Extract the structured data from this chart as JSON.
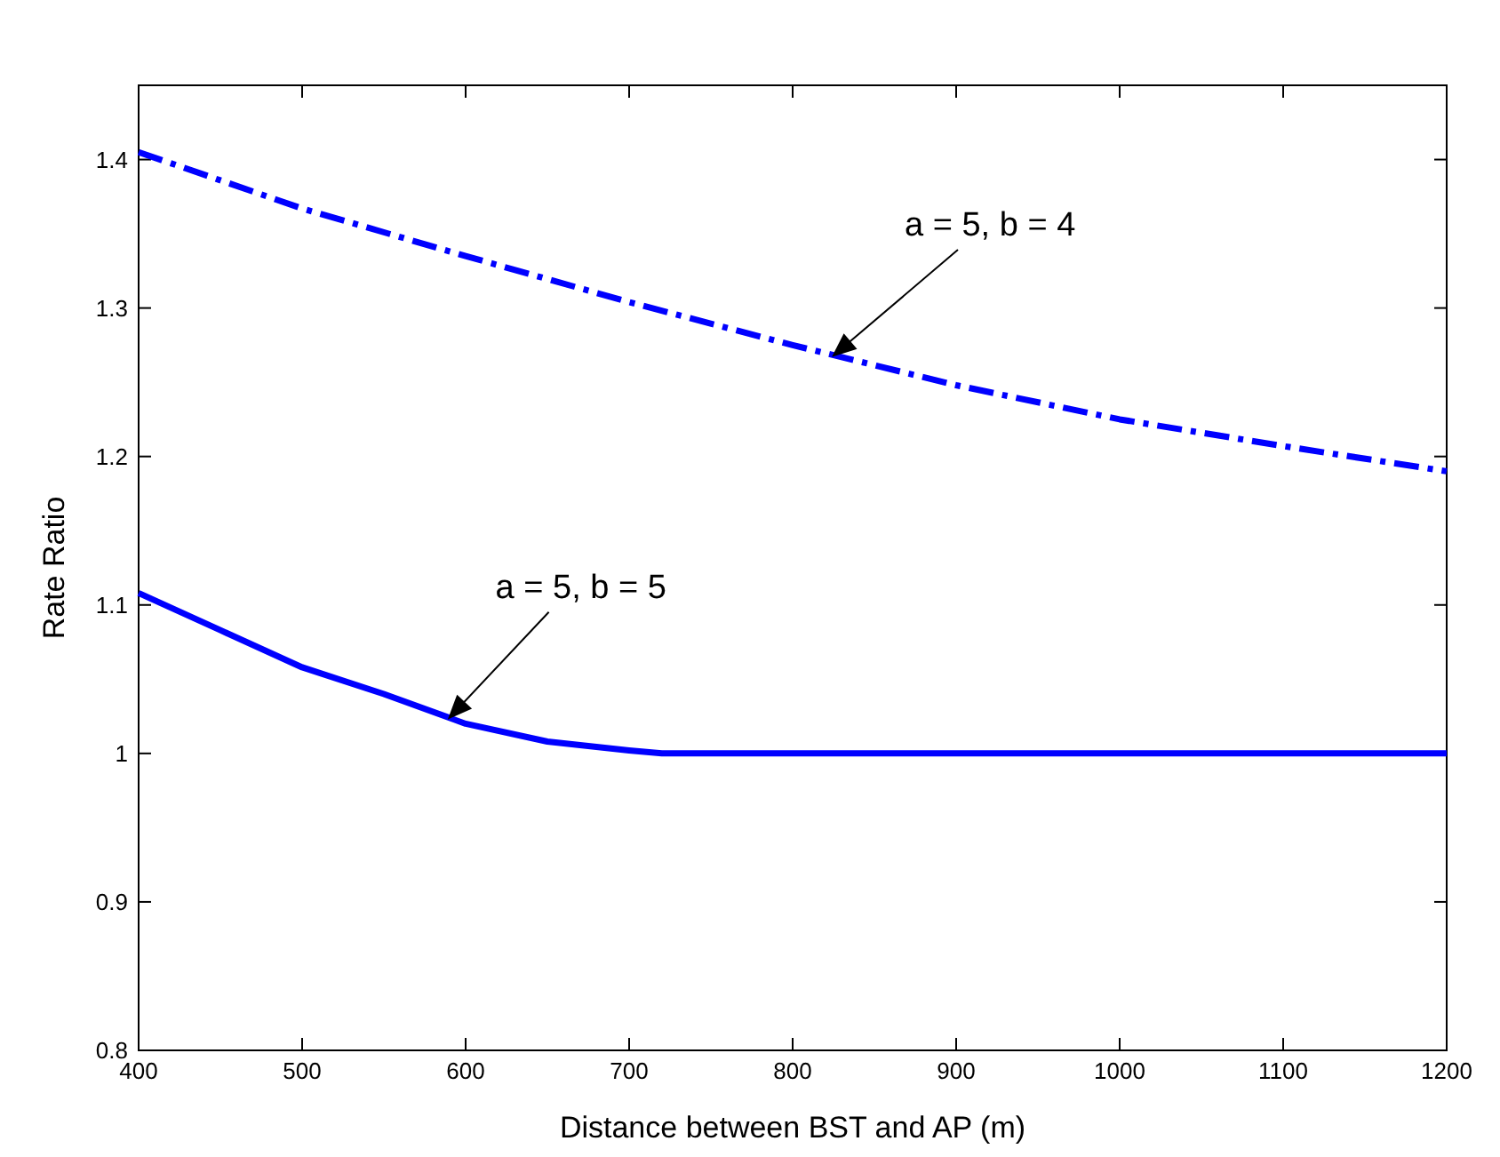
{
  "chart_data": {
    "type": "line",
    "xlabel": "Distance between BST and AP (m)",
    "ylabel": "Rate Ratio",
    "xlim": [
      400,
      1200
    ],
    "ylim": [
      0.8,
      1.45
    ],
    "xticks": [
      400,
      500,
      600,
      700,
      800,
      900,
      1000,
      1100,
      1200
    ],
    "yticks": [
      0.8,
      0.9,
      1,
      1.1,
      1.2,
      1.3,
      1.4
    ],
    "grid": false,
    "marker": "none",
    "series": [
      {
        "color": "#0000ff",
        "line_style": "dashed",
        "x": [
          400,
          500,
          600,
          700,
          800,
          900,
          1000,
          1100,
          1200
        ],
        "values": [
          1.405,
          1.367,
          1.335,
          1.304,
          1.275,
          1.248,
          1.225,
          1.207,
          1.19
        ]
      },
      {
        "color": "#0000ff",
        "line_style": "solid",
        "x": [
          400,
          450,
          500,
          550,
          600,
          650,
          700,
          720,
          800,
          1000,
          1200
        ],
        "values": [
          1.108,
          1.083,
          1.058,
          1.04,
          1.02,
          1.008,
          1.002,
          1.0,
          1.0,
          1.0,
          1.0
        ]
      }
    ],
    "annotations": [
      {
        "text": "a = 5, b = 4",
        "x": 825,
        "y": 1.268
      },
      {
        "text": "a = 5, b = 5",
        "x": 590,
        "y": 1.024
      }
    ]
  }
}
